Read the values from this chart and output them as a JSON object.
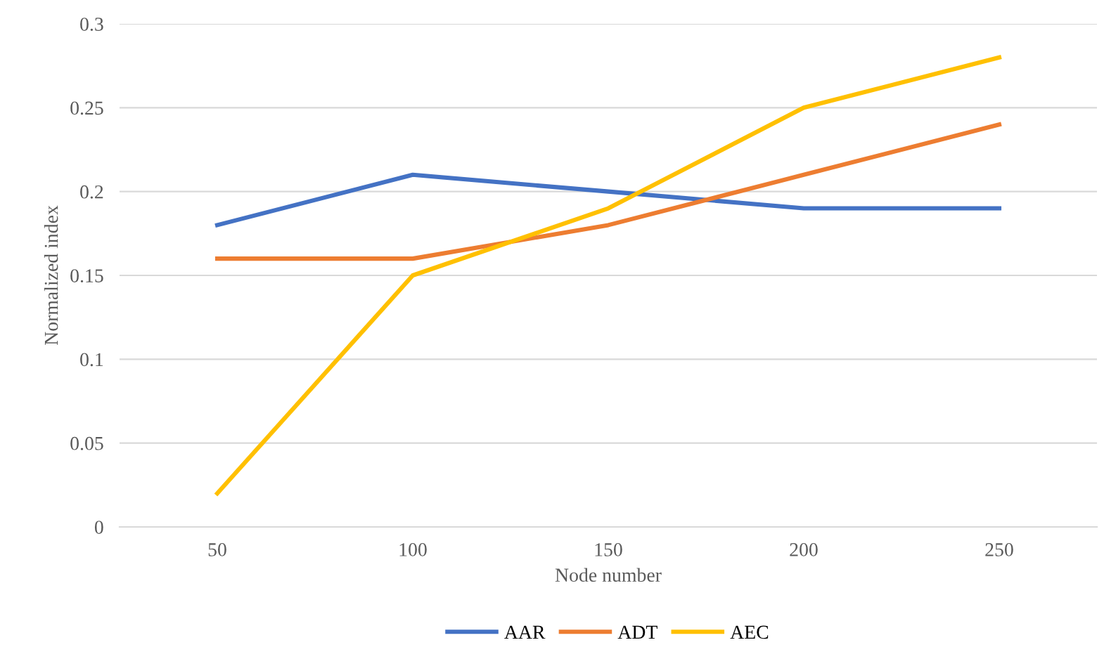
{
  "chart_data": {
    "type": "line",
    "xlabel": "Node number",
    "ylabel": "Normalized index",
    "categories": [
      "50",
      "100",
      "150",
      "200",
      "250"
    ],
    "series": [
      {
        "name": "AAR",
        "color": "#4472c4",
        "values": [
          0.18,
          0.21,
          0.2,
          0.19,
          0.19
        ]
      },
      {
        "name": "ADT",
        "color": "#ed7d31",
        "values": [
          0.16,
          0.16,
          0.18,
          0.21,
          0.24
        ]
      },
      {
        "name": "AEC",
        "color": "#ffc000",
        "values": [
          0.02,
          0.15,
          0.19,
          0.25,
          0.28
        ]
      }
    ],
    "ylim": [
      0,
      0.3
    ],
    "yticks": [
      0,
      0.05,
      0.1,
      0.15,
      0.2,
      0.25,
      0.3
    ],
    "grid": "y",
    "legend": "bottom",
    "marker": "none",
    "line_style": "solid"
  }
}
